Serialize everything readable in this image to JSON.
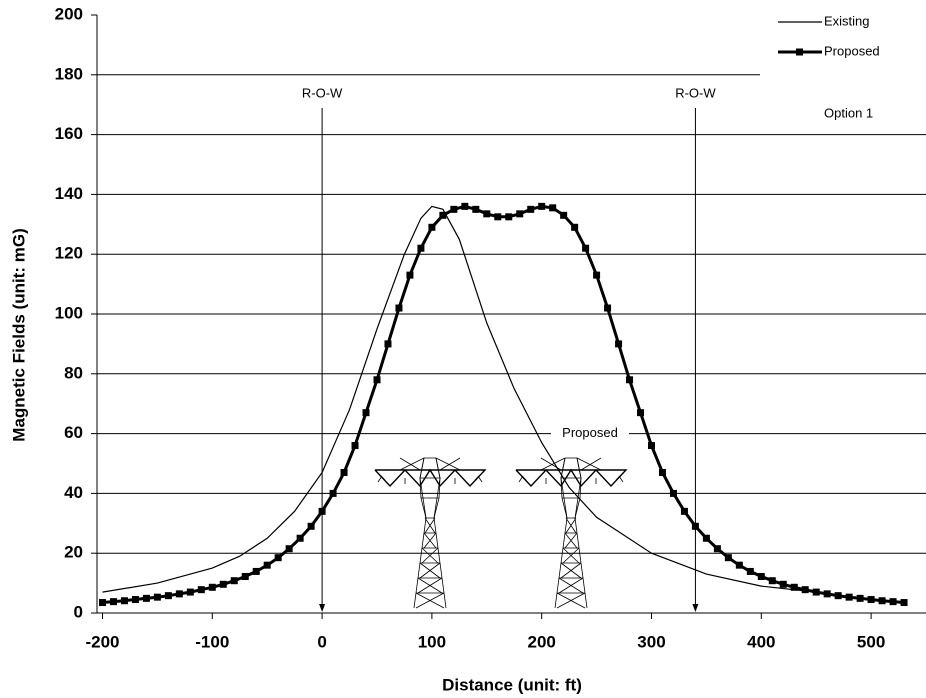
{
  "chart_data": {
    "type": "line",
    "xlabel": "Distance (unit: ft)",
    "ylabel": "Magnetic Fields (unit: mG)",
    "xlim": [
      -205,
      550
    ],
    "ylim": [
      0,
      200
    ],
    "xticks": [
      -200,
      -100,
      0,
      100,
      200,
      300,
      400,
      500
    ],
    "yticks": [
      0,
      20,
      40,
      60,
      80,
      100,
      120,
      140,
      160,
      180,
      200
    ],
    "grid": true,
    "legend": "upper right",
    "legend_note": "Option 1",
    "series": [
      {
        "name": "Existing",
        "color": "#000000",
        "marker": "none",
        "x": [
          -200,
          -150,
          -100,
          -75,
          -50,
          -25,
          0,
          25,
          50,
          75,
          90,
          100,
          110,
          125,
          150,
          175,
          200,
          225,
          250,
          300,
          350,
          400,
          450
        ],
        "values": [
          7,
          10,
          15,
          19,
          25,
          34,
          47,
          68,
          95,
          120,
          132,
          136,
          135,
          125,
          97,
          75,
          57,
          42,
          32,
          20,
          13,
          9,
          7
        ]
      },
      {
        "name": "Proposed",
        "color": "#000000",
        "marker": "square",
        "x": [
          -200,
          -190,
          -180,
          -170,
          -160,
          -150,
          -140,
          -130,
          -120,
          -110,
          -100,
          -90,
          -80,
          -70,
          -60,
          -50,
          -40,
          -30,
          -20,
          -10,
          0,
          10,
          20,
          30,
          40,
          50,
          60,
          70,
          80,
          90,
          100,
          110,
          120,
          130,
          140,
          150,
          160,
          170,
          180,
          190,
          200,
          210,
          220,
          230,
          240,
          250,
          260,
          270,
          280,
          290,
          300,
          310,
          320,
          330,
          340,
          350,
          360,
          370,
          380,
          390,
          400,
          410,
          420,
          430,
          440,
          450,
          460,
          470,
          480,
          490,
          500,
          510,
          520,
          530
        ],
        "values": [
          3.5,
          3.8,
          4.1,
          4.5,
          4.9,
          5.3,
          5.8,
          6.4,
          7.0,
          7.8,
          8.6,
          9.6,
          10.8,
          12.2,
          13.9,
          16,
          18.5,
          21.5,
          25,
          29,
          34,
          40,
          47,
          56,
          67,
          78,
          90,
          102,
          113,
          122,
          129,
          133,
          135,
          136,
          135,
          133.5,
          132.5,
          132.5,
          133.5,
          135,
          136,
          135.5,
          133,
          129,
          122,
          113,
          102,
          90,
          78,
          67,
          56,
          47,
          40,
          34,
          29,
          25,
          21.5,
          18.5,
          16,
          13.9,
          12.2,
          10.8,
          9.6,
          8.6,
          7.8,
          7.0,
          6.4,
          5.8,
          5.3,
          4.9,
          4.5,
          4.1,
          3.8,
          3.5
        ]
      }
    ],
    "row_lines": [
      {
        "x": 0,
        "label": "R-O-W"
      },
      {
        "x": 340,
        "label": "R-O-W"
      }
    ],
    "annotations": [
      {
        "text": "Proposed",
        "x": 203,
        "y": 60
      }
    ]
  }
}
